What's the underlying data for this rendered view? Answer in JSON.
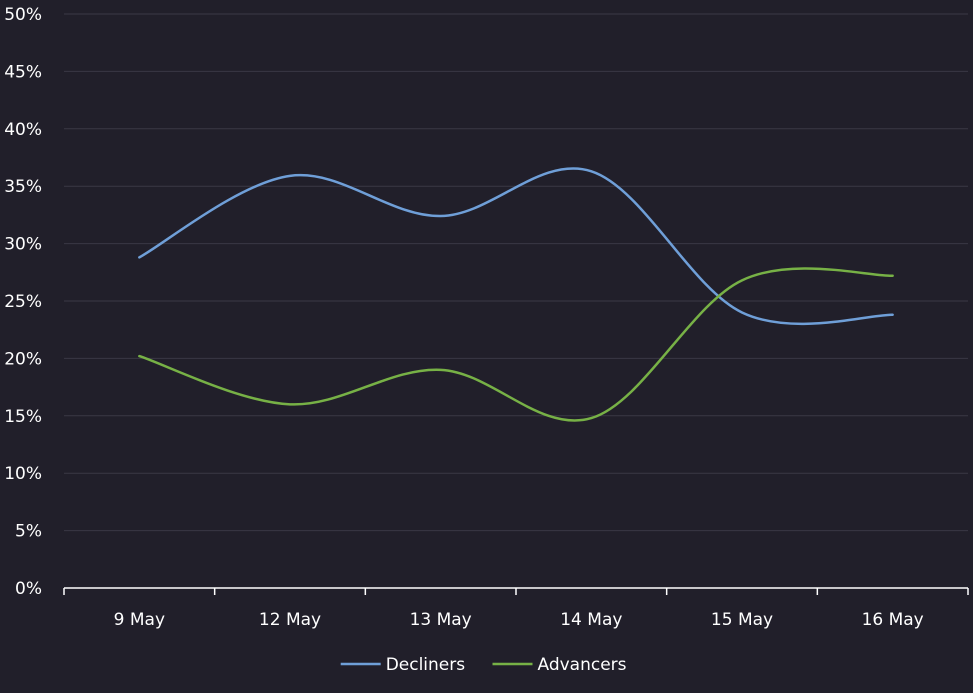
{
  "chart_data": {
    "type": "line",
    "title": "",
    "xlabel": "",
    "ylabel": "",
    "categories": [
      "9 May",
      "12 May",
      "13 May",
      "14 May",
      "15 May",
      "16 May"
    ],
    "ylim": [
      0,
      50
    ],
    "yticks": [
      "0%",
      "5%",
      "10%",
      "15%",
      "20%",
      "25%",
      "30%",
      "35%",
      "40%",
      "45%",
      "50%"
    ],
    "y_unit": "%",
    "grid": true,
    "legend_position": "bottom",
    "series": [
      {
        "name": "Decliners",
        "color": "#6f9fd8",
        "values": [
          28.8,
          35.9,
          32.4,
          36.3,
          24.0,
          23.8
        ]
      },
      {
        "name": "Advancers",
        "color": "#77b146",
        "values": [
          20.2,
          16.0,
          19.0,
          14.8,
          26.8,
          27.2
        ]
      }
    ],
    "colors": {
      "background": "#211f2a",
      "gridline": "#3a3845",
      "axis": "#ffffff",
      "text": "#ffffff"
    }
  }
}
